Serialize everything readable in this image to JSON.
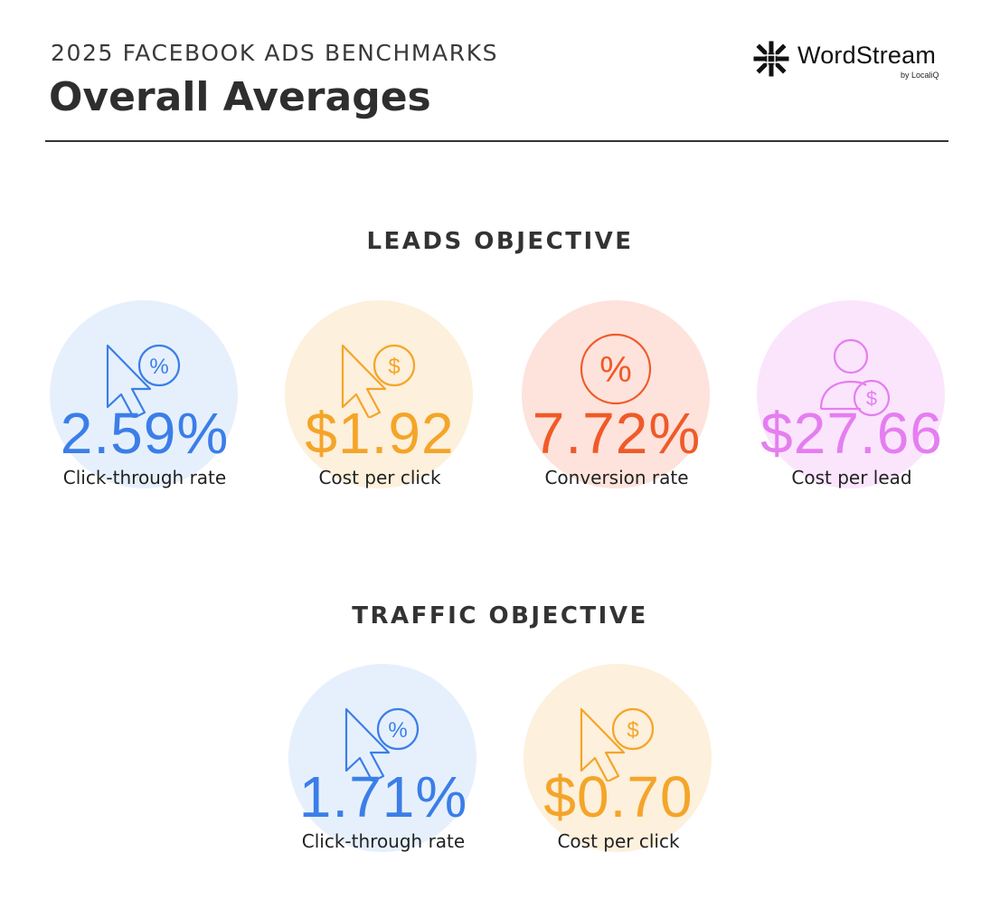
{
  "header": {
    "eyebrow": "2025 FACEBOOK ADS BENCHMARKS",
    "title": "Overall Averages"
  },
  "logo": {
    "wordmark": "WordStream",
    "sub": "by LocaliQ",
    "icon": "wordstream-star-icon"
  },
  "leads": {
    "title": "LEADS OBJECTIVE",
    "stats": [
      {
        "value": "2.59%",
        "label": "Click-through rate",
        "icon": "cursor-percent-icon",
        "color": "#3b7ee8",
        "bg": "#e6f0fd"
      },
      {
        "value": "$1.92",
        "label": "Cost per click",
        "icon": "cursor-dollar-icon",
        "color": "#f4a529",
        "bg": "#fdf0dc"
      },
      {
        "value": "7.72%",
        "label": "Conversion rate",
        "icon": "percent-circle-icon",
        "color": "#f05a28",
        "bg": "#fde3dc"
      },
      {
        "value": "$27.66",
        "label": "Cost per lead",
        "icon": "person-dollar-icon",
        "color": "#e57ef0",
        "bg": "#fbe5fd"
      }
    ]
  },
  "traffic": {
    "title": "TRAFFIC OBJECTIVE",
    "stats": [
      {
        "value": "1.71%",
        "label": "Click-through rate",
        "icon": "cursor-percent-icon",
        "color": "#3b7ee8",
        "bg": "#e6f0fd"
      },
      {
        "value": "$0.70",
        "label": "Cost per click",
        "icon": "cursor-dollar-icon",
        "color": "#f4a529",
        "bg": "#fdf0dc"
      }
    ]
  }
}
